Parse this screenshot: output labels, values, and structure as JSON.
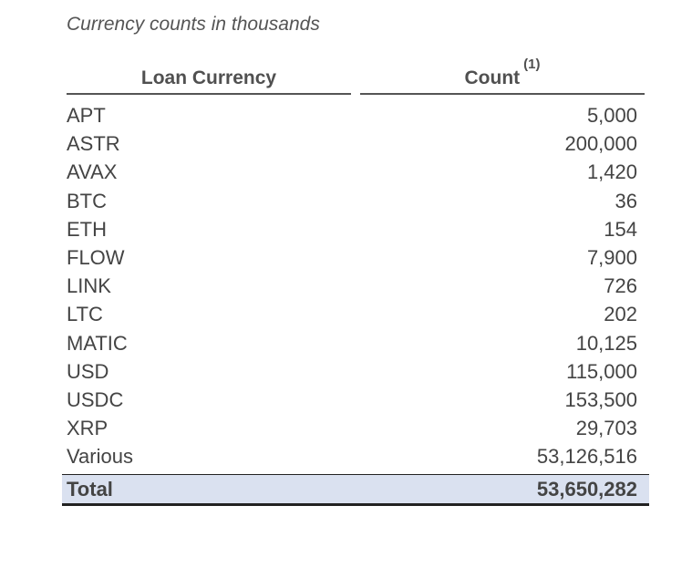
{
  "caption": "Currency counts in thousands",
  "headers": {
    "currency": "Loan Currency",
    "count": "Count",
    "count_footnote": "(1)"
  },
  "rows": [
    {
      "currency": "APT",
      "count": "5,000"
    },
    {
      "currency": "ASTR",
      "count": "200,000"
    },
    {
      "currency": "AVAX",
      "count": "1,420"
    },
    {
      "currency": "BTC",
      "count": "36"
    },
    {
      "currency": "ETH",
      "count": "154"
    },
    {
      "currency": "FLOW",
      "count": "7,900"
    },
    {
      "currency": "LINK",
      "count": "726"
    },
    {
      "currency": "LTC",
      "count": "202"
    },
    {
      "currency": "MATIC",
      "count": "10,125"
    },
    {
      "currency": "USD",
      "count": "115,000"
    },
    {
      "currency": "USDC",
      "count": "153,500"
    },
    {
      "currency": "XRP",
      "count": "29,703"
    },
    {
      "currency": "Various",
      "count": "53,126,516"
    }
  ],
  "total": {
    "label": "Total",
    "count": "53,650,282"
  },
  "colors": {
    "total_row_bg": "#dae1f0"
  }
}
